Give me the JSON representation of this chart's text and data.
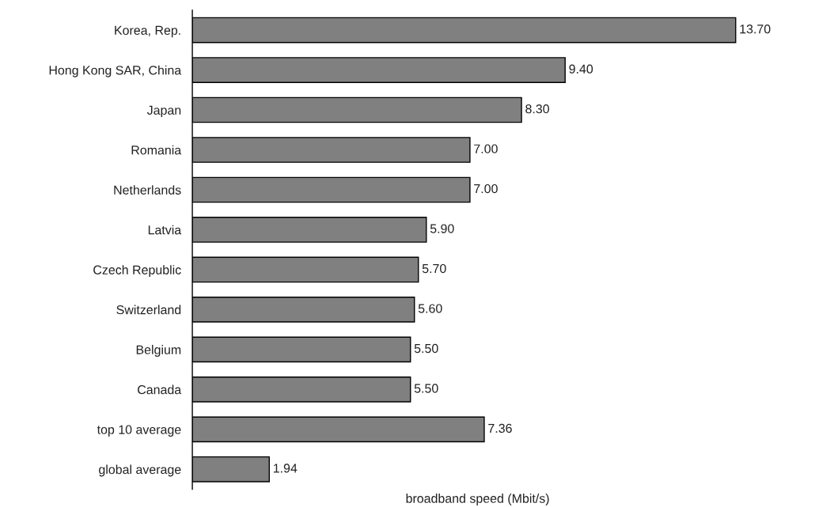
{
  "chart_data": {
    "type": "bar",
    "orientation": "horizontal",
    "xlabel": "broadband speed (Mbit/s)",
    "categories": [
      "Korea, Rep.",
      "Hong Kong SAR, China",
      "Japan",
      "Romania",
      "Netherlands",
      "Latvia",
      "Czech Republic",
      "Switzerland",
      "Belgium",
      "Canada",
      "top 10 average",
      "global average"
    ],
    "values": [
      13.7,
      9.4,
      8.3,
      7.0,
      7.0,
      5.9,
      5.7,
      5.6,
      5.5,
      5.5,
      7.36,
      1.94
    ],
    "value_labels": [
      "13.70",
      "9.40",
      "8.30",
      "7.00",
      "7.00",
      "5.90",
      "5.70",
      "5.60",
      "5.50",
      "5.50",
      "7.36",
      "1.94"
    ],
    "color": "#808080",
    "grid": false,
    "legend": false,
    "tick_labels": "y"
  }
}
